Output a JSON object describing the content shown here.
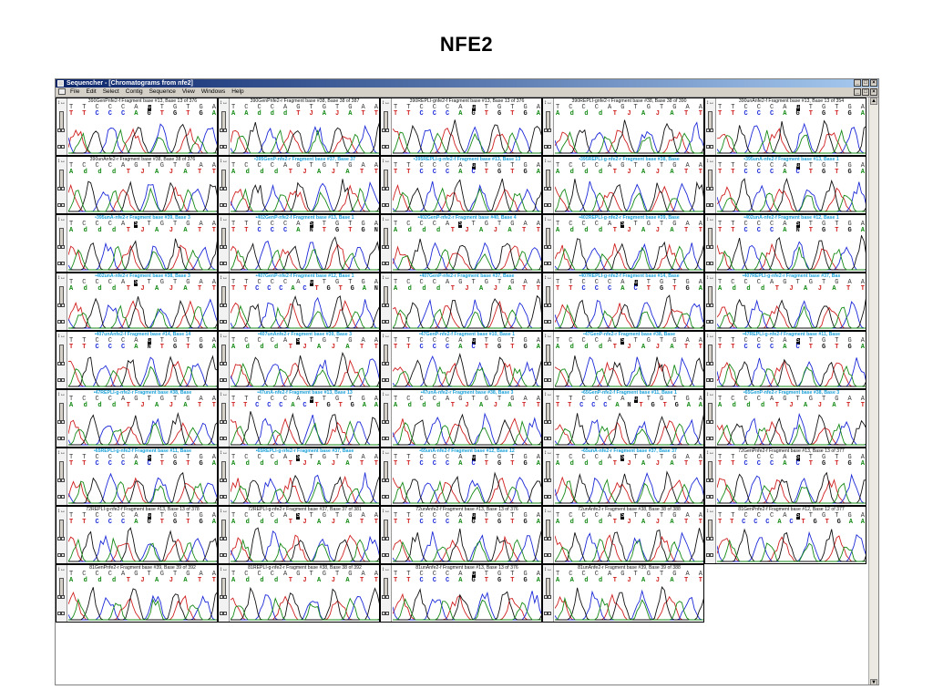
{
  "slide": {
    "title": "NFE2"
  },
  "window": {
    "title": "Sequencher - [Chromatograms from nfe2]",
    "menu": [
      "File",
      "Edit",
      "Select",
      "Contig",
      "Sequence",
      "View",
      "Windows",
      "Help"
    ],
    "controls": {
      "minimize": "_",
      "maximize": "□",
      "close": "×"
    }
  },
  "colors": {
    "T": "#d02020",
    "C": "#1d2ad8",
    "G": "#111111",
    "A": "#168a16",
    "titlebar": "#0a246a",
    "header_cyan": "#1aa0d8"
  },
  "panels": [
    {
      "name": "390GenPnfe2-f Fragment base #13,  Base 13 of 376",
      "style": "plain",
      "ref": "TTCCCAGTGTGA",
      "called": "TTCCCAGTGTGA"
    },
    {
      "name": "390GenPnfe2-r Fragment base #38,  Base 38 of 387",
      "style": "plain",
      "ref": "TCCCAGTGTGAA",
      "called": "AAdddTJAJATT"
    },
    {
      "name": "390REPLI-gnfe2-f Fragment base #13,  Base 13 of 376",
      "style": "plain",
      "ref": "TTCCCAGTGTGA",
      "called": "TTCCCAGTGTGA"
    },
    {
      "name": "390REPLI-gnfe2-r Fragment base #38,  Base 38 of 390",
      "style": "plain",
      "ref": "TCCCAGTGTGAA",
      "called": "AdddTJAJATT"
    },
    {
      "name": "390unAnfe2-f Fragment base #13,  Base 13 of 354",
      "style": "plain",
      "ref": "TTCCCAGTGTGA",
      "called": "TTCCCAGTGTGA"
    },
    {
      "name": "390unAnfe2-r Fragment base #38,  Base 38 of 376",
      "style": "plain",
      "ref": "TCCCAGTGTGAA",
      "called": "AdddTJAJATT"
    },
    {
      "name": "•395GenP-nfe2-r Fragment base #37,  Base 37",
      "style": "cyan",
      "ref": "TCCCAGTGTGAA",
      "called": "AdddTJAJATT"
    },
    {
      "name": "•395REPLI-g-nfe2-f Fragment base #13,  Base 13",
      "style": "cyan",
      "ref": "TTCCCAGTGTGA",
      "called": "TTCCCACTGTGA"
    },
    {
      "name": "•395REPLI-g-nfe2-r Fragment base #38,  Base",
      "style": "cyan",
      "ref": "TCCCAGTGTGAA",
      "called": "AdddTJAJATT"
    },
    {
      "name": "•395unA-nfe2-f Fragment base #13,  Base 1",
      "style": "cyan",
      "ref": "TTCCCAGTGTGA",
      "called": "TTCCCACTGTGA"
    },
    {
      "name": "•395unA-nfe2-r Fragment base #39,  Base 3",
      "style": "cyan",
      "ref": "TCCCASTGTGAA",
      "called": "AdddTJAJATT"
    },
    {
      "name": "•402GenP-nfe2-f Fragment base #13,  Base 1",
      "style": "cyan",
      "ref": "TTCCCASTGTGA",
      "called": "TTCCCANTGTGN"
    },
    {
      "name": "•402GenP-nfe2-r Fragment base #40,  Base 4",
      "style": "cyan",
      "ref": "TCCCASTGTGAA",
      "called": "AdddTJAJATT"
    },
    {
      "name": "•402REPLI-g-nfe2-r Fragment base #39,  Base",
      "style": "cyan",
      "ref": "TCCCASTGTGAA",
      "called": "AdddTJAJATT"
    },
    {
      "name": "•402unA-nfe2-f Fragment base #12,  Base 1",
      "style": "cyan",
      "ref": "TTCCCASTGTGA",
      "called": "TTCCCANTGTGA"
    },
    {
      "name": "•402unA-nfe2-r Fragment base #38,  Base 3",
      "style": "cyan",
      "ref": "TCCCASTGTGAA",
      "called": "AdddTJAJATT"
    },
    {
      "name": "•407GenP-nfe2-f Fragment base #12,  Base 1",
      "style": "cyan",
      "ref": "TTCCCAGTGTGA",
      "called": "TTCCCACTGTGAN"
    },
    {
      "name": "•407GenP-nfe2-r Fragment base #37,  Base",
      "style": "cyan",
      "ref": "TCCCAGTGTGAA",
      "called": "AdddTJAJATT"
    },
    {
      "name": "•407REPLI-g-nfe2-f Fragment base #14,  Base",
      "style": "cyan",
      "ref": "TTCCCAGTGTGA",
      "called": "TTCCCACTGTGA"
    },
    {
      "name": "•407REPLI-g-nfe2-r Fragment base #37,  Bas",
      "style": "cyan",
      "ref": "TCCCAGTGTGAA",
      "called": "AdddTJAJATT"
    },
    {
      "name": "•407unAnfe2-f Fragment base #14,  Base 14",
      "style": "cyan",
      "ref": "TTCCCAGTGTGA",
      "called": "TTCCCANTGTGA"
    },
    {
      "name": "•407unAnfe2-r Fragment base #39,  Base 3",
      "style": "cyan",
      "ref": "TCCCASTGTGAA",
      "called": "AdddTJAJATT"
    },
    {
      "name": "•47GenP-nfe2-f Fragment base #10,  Base 1",
      "style": "cyan",
      "ref": "TTCCCAGTGTGA",
      "called": "TTCCCACTGTGA"
    },
    {
      "name": "•47GenP-nfe2-r Fragment base #38,  Base",
      "style": "cyan",
      "ref": "TCCCASTGTGAA",
      "called": "AdddTJAJATT"
    },
    {
      "name": "•47REPLI-g-nfe2-f Fragment base #11,  Base",
      "style": "cyan",
      "ref": "TTCCCASTGTGA",
      "called": "TTCCCACTGTGA"
    },
    {
      "name": "•47REPLI-g-nfe2-r Fragment base #38,  Base",
      "style": "cyan",
      "ref": "TCCCAGTGTGAA",
      "called": "AdddTJAJATT"
    },
    {
      "name": "•47unA-nfe2-f Fragment base #13,  Base 13",
      "style": "cyan",
      "ref": "TTCCCAGTGTGA",
      "called": "TTCCCACTGTGAA"
    },
    {
      "name": "•47unA-nfe2-r Fragment base #38,  Base 3",
      "style": "cyan",
      "ref": "TCCCAGTGTGAA",
      "called": "AdddTJAJATT"
    },
    {
      "name": "•65GenP-nfe2-f Fragment base #11,  Base 1",
      "style": "cyan",
      "ref": "TTCCCAGTGTGA",
      "called": "TTCCCANTGTGAA"
    },
    {
      "name": "•65GenP-nfe2-r Fragment base #38,  Base 3",
      "style": "cyan",
      "ref": "TCCCAGTGTGAA",
      "called": "AdddTJAJATT"
    },
    {
      "name": "•65REPLI-g-nfe2-f Fragment base #11,  Base",
      "style": "cyan",
      "ref": "TTCCCASTGTGA",
      "called": "TTCCCACTGTGA"
    },
    {
      "name": "•65REPLI-g-nfe2-r Fragment base #37,  Base",
      "style": "cyan",
      "ref": "TCCCASTGTGAA",
      "called": "AdddTJAJATT"
    },
    {
      "name": "•65unA-nfe2-f Fragment base #12,  Base 12",
      "style": "cyan",
      "ref": "TTCCCAGTGTGA",
      "called": "TTCCCACTGTGA"
    },
    {
      "name": "•65unA-nfe2-r Fragment base #37,  Base 37",
      "style": "cyan",
      "ref": "TCCCASTGTGAA",
      "called": "AdddTJAJATT"
    },
    {
      "name": "72GenPnfe2-f Fragment base #13,  Base 13 of 377",
      "style": "plain",
      "ref": "TTCCCASTGTGA",
      "called": "TTCCCACTGTGA"
    },
    {
      "name": "72REPLI-g-nfe2-f Fragment base #13,  Base 13 of 378",
      "style": "plain",
      "ref": "TTCCCAGTGTGA",
      "called": "TTCCCAGTGTGA"
    },
    {
      "name": "72REPLI-g-nfe2-r Fragment base #37,  Base 37 of 381",
      "style": "plain",
      "ref": "TCCCASTGTGAA",
      "called": "AdddTJAJATT"
    },
    {
      "name": "72unAnfe2-f Fragment base #13,  Base 13 of 376",
      "style": "plain",
      "ref": "TTCCCAGTGTGA",
      "called": "TTCCCAGTGTGA"
    },
    {
      "name": "72unAnfe2-r Fragment base #38,  Base 38 of 388",
      "style": "plain",
      "ref": "TCCCASTGTGAA",
      "called": "AdddTJAJATT"
    },
    {
      "name": "81GenPnfe2-f Fragment base #12,  Base 12 of 377",
      "style": "plain",
      "ref": "TTCCCASTGTGA",
      "called": "TTCCCACTGTGAA"
    },
    {
      "name": "81GenPnfe2-r Fragment base #39,  Base 39 of 392",
      "style": "plain",
      "ref": "TCCCAGTGTGAA",
      "called": "AdddTJAJATT"
    },
    {
      "name": "81REPLI-g-nfe2-r Fragment base #38,  Base 38 of 392",
      "style": "plain",
      "ref": "TCCCAGTGTGAA",
      "called": "AdddTJAJATT"
    },
    {
      "name": "81unAnfe2-f Fragment base #13,  Base 13 of 376",
      "style": "plain",
      "ref": "TTCCCAGTGTGA",
      "called": "TTCCCAGTGTGA"
    },
    {
      "name": "81unAnfe2-r Fragment base #39,  Base 39 of 388",
      "style": "plain",
      "ref": "TCCCAGTGTGAA",
      "called": "AAddTJAJATT"
    }
  ]
}
